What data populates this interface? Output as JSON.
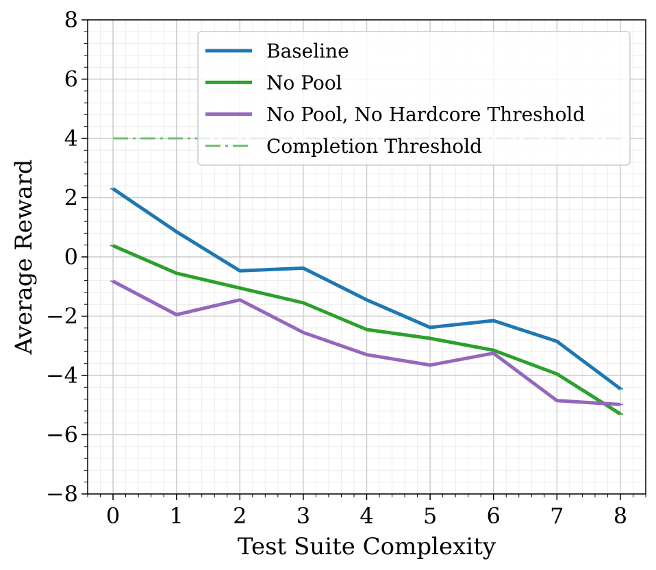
{
  "chart_data": {
    "type": "line",
    "title": "",
    "xlabel": "Test Suite Complexity",
    "ylabel": "Average Reward",
    "x": [
      0,
      1,
      2,
      3,
      4,
      5,
      6,
      7,
      8
    ],
    "xlim": [
      -0.4,
      8.4
    ],
    "ylim": [
      -8,
      8
    ],
    "xticks": [
      0,
      1,
      2,
      3,
      4,
      5,
      6,
      7,
      8
    ],
    "yticks": [
      -8,
      -6,
      -4,
      -2,
      0,
      2,
      4,
      6,
      8
    ],
    "ytick_labels": [
      "−8",
      "−6",
      "−4",
      "−2",
      "0",
      "2",
      "4",
      "6",
      "8"
    ],
    "grid": true,
    "legend_position": "top-right",
    "series": [
      {
        "name": "Baseline",
        "color": "#1f77b4",
        "style": "solid",
        "values": [
          2.3,
          0.85,
          -0.47,
          -0.38,
          -1.45,
          -2.38,
          -2.15,
          -2.85,
          -4.45
        ]
      },
      {
        "name": "No Pool",
        "color": "#2ca02c",
        "style": "solid",
        "values": [
          0.38,
          -0.55,
          -1.05,
          -1.55,
          -2.45,
          -2.75,
          -3.15,
          -3.95,
          -5.3
        ]
      },
      {
        "name": "No Pool, No Hardcore Threshold",
        "color": "#9467bd",
        "style": "solid",
        "values": [
          -0.82,
          -1.95,
          -1.45,
          -2.55,
          -3.3,
          -3.65,
          -3.25,
          -4.85,
          -4.98
        ]
      },
      {
        "name": "Completion Threshold",
        "color": "#66bb66",
        "style": "dashdot",
        "values": [
          4,
          4,
          4,
          4,
          4,
          4,
          4,
          4,
          4
        ]
      }
    ]
  }
}
